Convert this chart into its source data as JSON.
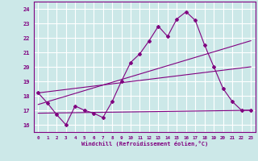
{
  "xlabel": "Windchill (Refroidissement éolien,°C)",
  "background_color": "#cce8e8",
  "grid_color": "#ffffff",
  "line_color": "#800080",
  "xlim": [
    -0.5,
    23.5
  ],
  "ylim": [
    15.5,
    24.5
  ],
  "yticks": [
    16,
    17,
    18,
    19,
    20,
    21,
    22,
    23,
    24
  ],
  "xticks": [
    0,
    1,
    2,
    3,
    4,
    5,
    6,
    7,
    8,
    9,
    10,
    11,
    12,
    13,
    14,
    15,
    16,
    17,
    18,
    19,
    20,
    21,
    22,
    23
  ],
  "line1_x": [
    0,
    1,
    2,
    3,
    4,
    5,
    6,
    7,
    8,
    9,
    10,
    11,
    12,
    13,
    14,
    15,
    16,
    17,
    18,
    19,
    20,
    21,
    22,
    23
  ],
  "line1_y": [
    18.2,
    17.5,
    16.7,
    16.0,
    17.3,
    17.0,
    16.8,
    16.5,
    17.6,
    19.0,
    20.3,
    20.9,
    21.8,
    22.8,
    22.1,
    23.3,
    23.8,
    23.2,
    21.5,
    20.0,
    18.5,
    17.6,
    17.0,
    17.0
  ],
  "line2_x": [
    0,
    23
  ],
  "line2_y": [
    16.8,
    17.0
  ],
  "line3_x": [
    0,
    23
  ],
  "line3_y": [
    17.4,
    21.8
  ],
  "line4_x": [
    0,
    23
  ],
  "line4_y": [
    18.2,
    20.0
  ]
}
